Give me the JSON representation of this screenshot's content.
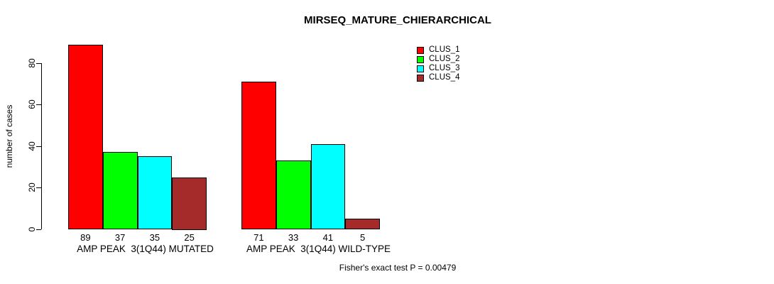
{
  "title": "MIRSEQ_MATURE_CHIERARCHICAL",
  "y_axis": {
    "label": "number of cases",
    "ticks": [
      0,
      20,
      40,
      60,
      80
    ]
  },
  "footnote": "Fisher's exact test P = 0.00479",
  "chart_data": {
    "type": "bar",
    "title": "MIRSEQ_MATURE_CHIERARCHICAL",
    "xlabel": "",
    "ylabel": "number of cases",
    "yticks": [
      0,
      20,
      40,
      60,
      80
    ],
    "ylim": [
      0,
      97
    ],
    "grid": false,
    "legend_position": "top-right",
    "categories": [
      "AMP PEAK  3(1Q44) MUTATED",
      "AMP PEAK  3(1Q44) WILD-TYPE"
    ],
    "series": [
      {
        "name": "CLUS_1",
        "color": "#FF0000",
        "values": [
          89,
          71
        ]
      },
      {
        "name": "CLUS_2",
        "color": "#00FF00",
        "values": [
          37,
          33
        ]
      },
      {
        "name": "CLUS_3",
        "color": "#00FFFF",
        "values": [
          35,
          41
        ]
      },
      {
        "name": "CLUS_4",
        "color": "#A52A2A",
        "values": [
          25,
          5
        ]
      }
    ],
    "bar_value_labels": [
      [
        89,
        37,
        35,
        25
      ],
      [
        71,
        33,
        41,
        5
      ]
    ],
    "bar_border_color": "#000000",
    "annotation": "Fisher's exact test P = 0.00479"
  }
}
